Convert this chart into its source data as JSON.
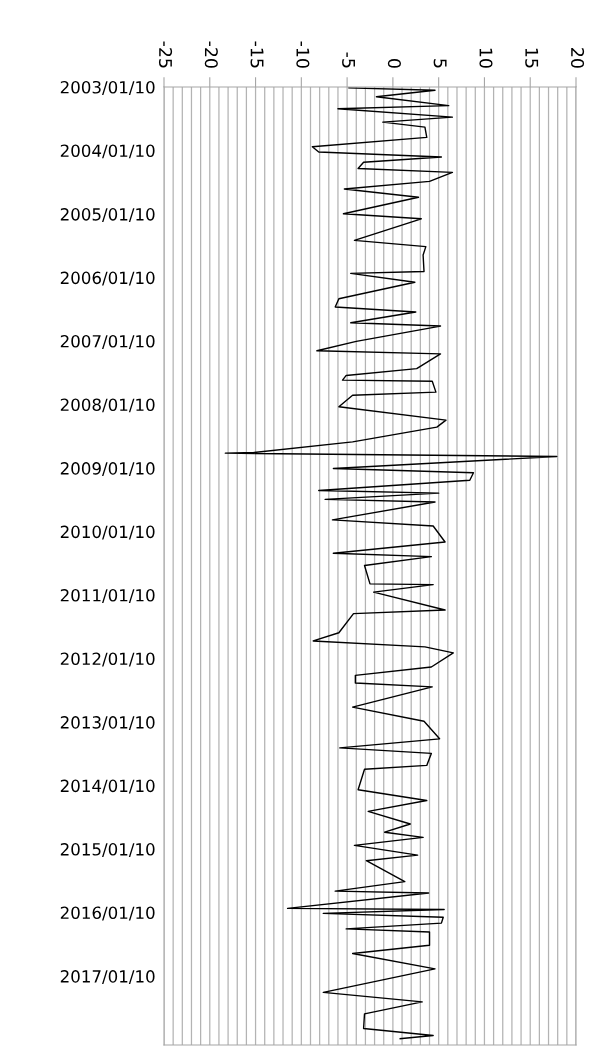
{
  "chart_data": {
    "type": "line",
    "orientation": "horizontal",
    "grid": "x",
    "marker": "none",
    "line_style": "solid",
    "ylim": [
      "2018-02-10",
      "2003-01-10"
    ],
    "yticks": [
      {
        "value": "2003-01-10",
        "label": "2003/01/10"
      },
      {
        "value": "2004-01-10",
        "label": "2004/01/10"
      },
      {
        "value": "2005-01-10",
        "label": "2005/01/10"
      },
      {
        "value": "2006-01-10",
        "label": "2006/01/10"
      },
      {
        "value": "2007-01-10",
        "label": "2007/01/10"
      },
      {
        "value": "2008-01-10",
        "label": "2008/01/10"
      },
      {
        "value": "2009-01-10",
        "label": "2009/01/10"
      },
      {
        "value": "2010-01-10",
        "label": "2010/01/10"
      },
      {
        "value": "2011-01-10",
        "label": "2011/01/10"
      },
      {
        "value": "2012-01-10",
        "label": "2012/01/10"
      },
      {
        "value": "2013-01-10",
        "label": "2013/01/10"
      },
      {
        "value": "2014-01-10",
        "label": "2014/01/10"
      },
      {
        "value": "2015-01-10",
        "label": "2015/01/10"
      },
      {
        "value": "2016-01-10",
        "label": "2016/01/10"
      },
      {
        "value": "2017-01-10",
        "label": "2017/01/10"
      }
    ],
    "xlim": [
      -25,
      20
    ],
    "xticks": [
      -25,
      {
        "value": -24,
        "label": null
      },
      {
        "value": -23,
        "label": null
      },
      {
        "value": -22,
        "label": null
      },
      {
        "value": -21,
        "label": null
      },
      -20,
      {
        "value": -19,
        "label": null
      },
      {
        "value": -18,
        "label": null
      },
      {
        "value": -17,
        "label": null
      },
      {
        "value": -16,
        "label": null
      },
      -15,
      {
        "value": -14,
        "label": null
      },
      {
        "value": -13,
        "label": null
      },
      {
        "value": -12,
        "label": null
      },
      {
        "value": -11,
        "label": null
      },
      -10,
      {
        "value": -9,
        "label": null
      },
      {
        "value": -8,
        "label": null
      },
      {
        "value": -7,
        "label": null
      },
      {
        "value": -6,
        "label": null
      },
      -5,
      {
        "value": -4,
        "label": null
      },
      {
        "value": -3,
        "label": null
      },
      {
        "value": -2,
        "label": null
      },
      {
        "value": -1,
        "label": null
      },
      0,
      {
        "value": 1,
        "label": null
      },
      {
        "value": 2,
        "label": null
      },
      {
        "value": 3,
        "label": null
      },
      {
        "value": 4,
        "label": null
      },
      5,
      {
        "value": 6,
        "label": null
      },
      {
        "value": 7,
        "label": null
      },
      {
        "value": 8,
        "label": null
      },
      {
        "value": 9,
        "label": null
      },
      10,
      {
        "value": 11,
        "label": null
      },
      {
        "value": 12,
        "label": null
      },
      {
        "value": 13,
        "label": null
      },
      {
        "value": 14,
        "label": null
      },
      15,
      {
        "value": 16,
        "label": null
      },
      {
        "value": 17,
        "label": null
      },
      {
        "value": 18,
        "label": null
      },
      {
        "value": 19,
        "label": null
      },
      20
    ],
    "x": [
      "2003-01-15",
      "2003-01-29",
      "2003-03-07",
      "2003-04-27",
      "2003-05-15",
      "2003-07-02",
      "2003-07-31",
      "2003-08-29",
      "2003-10-27",
      "2003-12-20",
      "2004-01-19",
      "2004-02-17",
      "2004-03-18",
      "2004-04-23",
      "2004-05-15",
      "2004-07-06",
      "2004-08-19",
      "2004-10-05",
      "2005-01-08",
      "2005-02-06",
      "2005-06-10",
      "2005-07-16",
      "2005-09-02",
      "2005-12-06",
      "2005-12-17",
      "2006-02-06",
      "2006-05-12",
      "2006-06-28",
      "2006-07-27",
      "2006-09-27",
      "2006-10-16",
      "2007-01-12",
      "2007-03-07",
      "2007-03-25",
      "2007-06-18",
      "2007-07-27",
      "2007-08-23",
      "2007-08-29",
      "2007-10-31",
      "2007-11-18",
      "2008-01-23",
      "2008-04-09",
      "2008-05-19",
      "2008-08-12",
      "2008-10-12",
      "2008-10-16",
      "2008-11-04",
      "2009-01-12",
      "2009-02-06",
      "2009-03-21",
      "2009-05-19",
      "2009-06-03",
      "2009-07-09",
      "2009-07-24",
      "2009-11-04",
      "2009-12-09",
      "2010-03-11",
      "2010-05-15",
      "2010-06-03",
      "2010-07-24",
      "2010-11-07",
      "2010-11-11",
      "2010-12-24",
      "2011-04-06",
      "2011-04-27",
      "2011-08-15",
      "2011-10-01",
      "2011-11-04",
      "2011-12-09",
      "2012-02-28",
      "2012-04-16",
      "2012-05-30",
      "2012-06-21",
      "2012-10-16",
      "2013-01-05",
      "2013-04-16",
      "2013-06-07",
      "2013-07-09",
      "2013-09-16",
      "2013-10-08",
      "2014-02-03",
      "2014-04-06",
      "2014-06-07",
      "2014-08-19",
      "2014-10-05",
      "2014-11-04",
      "2014-12-20",
      "2015-02-14",
      "2015-03-18",
      "2015-07-16",
      "2015-09-09",
      "2015-09-20",
      "2015-12-17",
      "2015-12-24",
      "2016-01-15",
      "2016-02-06",
      "2016-03-11",
      "2016-04-13",
      "2016-05-01",
      "2016-07-16",
      "2016-09-02",
      "2016-11-29",
      "2017-04-13",
      "2017-06-07",
      "2017-08-15",
      "2017-11-07",
      "2017-12-17",
      "2018-01-05"
    ],
    "series": [
      {
        "color": "#000000",
        "values": [
          -4.8,
          4.6,
          -1.8,
          6.1,
          -6.0,
          6.5,
          -1.1,
          3.5,
          3.7,
          -8.8,
          -8.1,
          5.3,
          -3.2,
          -3.8,
          6.5,
          4.0,
          -5.3,
          2.8,
          -5.4,
          3.1,
          -4.2,
          3.6,
          3.3,
          3.4,
          -4.6,
          2.4,
          -5.9,
          -6.3,
          2.5,
          -4.6,
          5.2,
          -4.0,
          -8.3,
          5.2,
          2.6,
          -5.1,
          -5.5,
          4.3,
          4.7,
          -4.4,
          -5.9,
          5.8,
          4.8,
          -4.4,
          -15.2,
          -18.3,
          17.9,
          -6.5,
          8.8,
          8.4,
          -8.1,
          5.0,
          -7.4,
          4.6,
          -6.6,
          4.4,
          5.7,
          -6.5,
          4.2,
          -3.1,
          -2.5,
          4.4,
          -2.1,
          5.7,
          -4.3,
          -5.9,
          -8.7,
          3.5,
          6.6,
          4.2,
          -4.1,
          -4.1,
          4.3,
          -4.4,
          3.4,
          5.1,
          -5.8,
          4.2,
          3.7,
          -3.1,
          -3.8,
          3.7,
          -2.7,
          1.9,
          -0.9,
          3.3,
          -4.2,
          2.7,
          -2.9,
          1.3,
          -6.3,
          3.9,
          -11.5,
          5.6,
          -7.6,
          5.5,
          5.3,
          -5.1,
          4.0,
          4.0,
          -4.4,
          4.6,
          -7.6,
          3.2,
          -3.1,
          -3.2,
          4.4,
          0.8
        ]
      }
    ]
  }
}
